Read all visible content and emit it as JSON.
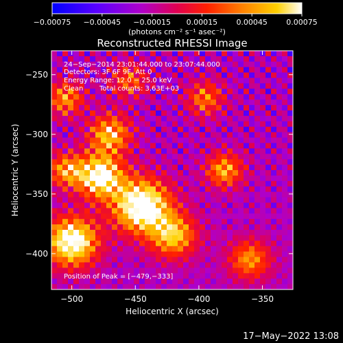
{
  "chart_data": {
    "type": "heatmap",
    "title": "Reconstructed RHESSI Image",
    "xlabel": "Heliocentric X (arcsec)",
    "ylabel": "Heliocentric Y (arcsec)",
    "xlim": [
      -516,
      -326
    ],
    "ylim": [
      -430,
      -230
    ],
    "x_ticks": [
      -500,
      -450,
      -400,
      -350
    ],
    "y_ticks": [
      -400,
      -350,
      -300,
      -250
    ],
    "x_tick_labels": [
      "−500",
      "−450",
      "−400",
      "−350"
    ],
    "y_tick_labels": [
      "−400",
      "−350",
      "−300",
      "−250"
    ],
    "colorbar": {
      "range": [
        -0.00075,
        0.00075
      ],
      "ticks": [
        -0.00075,
        -0.00045,
        -0.00015,
        0.00015,
        0.00045,
        0.00075
      ],
      "tick_labels": [
        "−0.00075",
        "−0.00045",
        "−0.00015",
        "0.00015",
        "0.00045",
        "0.00075"
      ],
      "unit_label": "(photons cm⁻² s⁻¹ asec⁻²)",
      "colors": [
        "#0000ff",
        "#5a00ff",
        "#b000c8",
        "#e00050",
        "#ff2000",
        "#ff8000",
        "#ffd000",
        "#ffffff"
      ]
    },
    "annotations": {
      "time_range": "24−Sep−2014 23:01:44.000 to 23:07:44.000",
      "detectors": "Detectors: 3F 6F 9F, Att 0",
      "energy_range": "Energy Range: 12.0 − 25.0 keV",
      "clean_label": "Clean",
      "total_counts": "Total counts: 3.63E+03",
      "peak_position": "Position of Peak = [−479,−333]"
    },
    "peak": [
      -479,
      -333
    ]
  },
  "footer": {
    "date": "17−May−2022 13:08"
  }
}
